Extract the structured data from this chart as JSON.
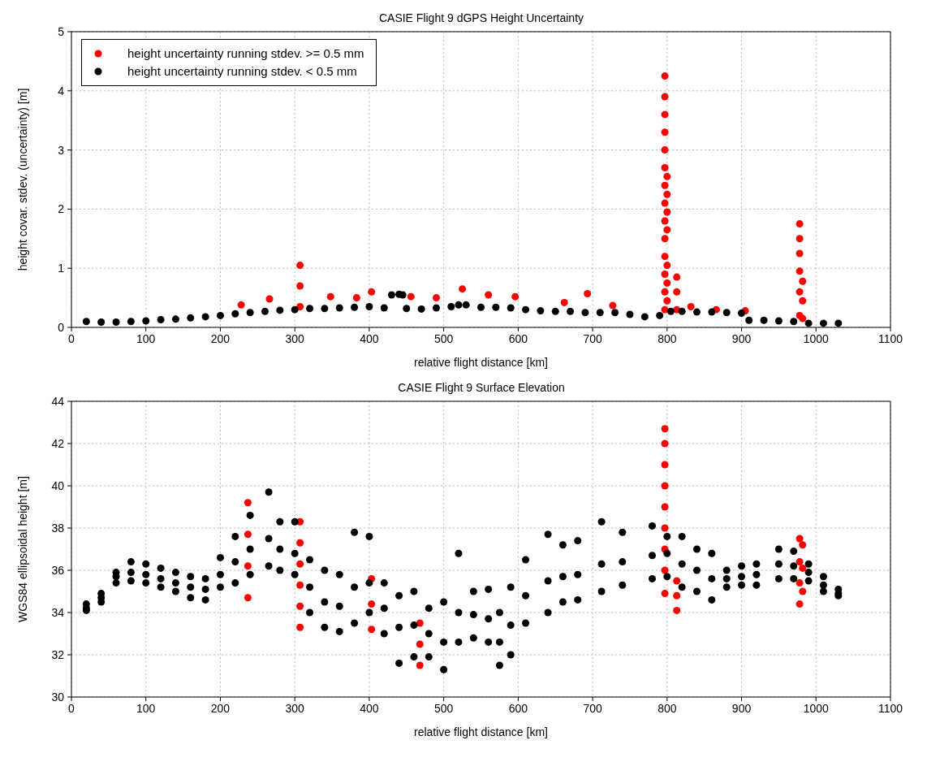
{
  "chart_data": [
    {
      "type": "scatter",
      "title": "CASIE Flight 9 dGPS Height Uncertainty",
      "xlabel": "relative flight distance [km]",
      "ylabel": "height covar. stdev. (uncertainty) [m]",
      "xlim": [
        0,
        1100
      ],
      "xticks": [
        0,
        100,
        200,
        300,
        400,
        500,
        600,
        700,
        800,
        900,
        1000,
        1100
      ],
      "ylim": [
        0,
        5
      ],
      "yticks": [
        0,
        1,
        2,
        3,
        4,
        5
      ],
      "grid": true,
      "legend": "top left",
      "marker": "circle",
      "series": [
        {
          "name": "height uncertainty running stdev. >= 0.5 mm",
          "color": "#ff0000",
          "x": [
            307,
            307,
            307,
            797,
            797,
            797,
            797,
            797,
            797,
            797,
            797,
            797,
            797,
            797,
            797,
            797,
            797,
            800,
            800,
            800,
            800,
            800,
            800,
            800,
            813,
            813,
            813,
            978,
            978,
            978,
            978,
            978,
            978,
            982,
            982,
            982,
            266,
            348,
            383,
            403,
            456,
            490,
            525,
            560,
            596,
            662,
            693,
            727,
            832,
            228,
            866,
            905
          ],
          "values": [
            0.35,
            0.7,
            1.05,
            0.3,
            0.6,
            0.9,
            1.2,
            1.5,
            1.8,
            2.1,
            2.4,
            2.7,
            3,
            3.3,
            3.6,
            3.9,
            4.25,
            0.45,
            0.75,
            1.05,
            1.65,
            1.95,
            2.25,
            2.55,
            0.3,
            0.6,
            0.85,
            0.2,
            0.6,
            0.95,
            1.25,
            1.5,
            1.75,
            0.15,
            0.45,
            0.78,
            0.48,
            0.52,
            0.5,
            0.6,
            0.52,
            0.5,
            0.65,
            0.55,
            0.52,
            0.42,
            0.57,
            0.37,
            0.35,
            0.38,
            0.3,
            0.28
          ]
        },
        {
          "name": "height uncertainty running stdev. < 0.5 mm",
          "color": "#000000",
          "x": [
            20,
            40,
            60,
            80,
            100,
            120,
            140,
            160,
            180,
            200,
            220,
            240,
            260,
            280,
            300,
            320,
            340,
            360,
            380,
            400,
            420,
            430,
            440,
            445,
            450,
            470,
            490,
            510,
            520,
            530,
            550,
            570,
            590,
            610,
            630,
            650,
            670,
            690,
            710,
            730,
            750,
            770,
            790,
            805,
            820,
            840,
            860,
            880,
            900,
            910,
            930,
            950,
            970,
            990,
            1010,
            1030
          ],
          "values": [
            0.1,
            0.09,
            0.09,
            0.1,
            0.11,
            0.13,
            0.14,
            0.16,
            0.18,
            0.2,
            0.23,
            0.25,
            0.27,
            0.29,
            0.3,
            0.32,
            0.32,
            0.33,
            0.34,
            0.35,
            0.33,
            0.55,
            0.56,
            0.55,
            0.32,
            0.31,
            0.33,
            0.35,
            0.38,
            0.38,
            0.34,
            0.34,
            0.33,
            0.3,
            0.28,
            0.27,
            0.27,
            0.25,
            0.25,
            0.25,
            0.22,
            0.18,
            0.2,
            0.27,
            0.27,
            0.26,
            0.26,
            0.25,
            0.24,
            0.12,
            0.12,
            0.11,
            0.1,
            0.07,
            0.07,
            0.07
          ]
        }
      ]
    },
    {
      "type": "scatter",
      "title": "CASIE Flight 9 Surface Elevation",
      "xlabel": "relative flight distance [km]",
      "ylabel": "WGS84 ellipsoidal height [m]",
      "xlim": [
        0,
        1100
      ],
      "xticks": [
        0,
        100,
        200,
        300,
        400,
        500,
        600,
        700,
        800,
        900,
        1000,
        1100
      ],
      "ylim": [
        30,
        44
      ],
      "yticks": [
        30,
        32,
        34,
        36,
        38,
        40,
        42,
        44
      ],
      "grid": true,
      "marker": "circle",
      "series": [
        {
          "color": "#ff0000",
          "x": [
            797,
            797,
            797,
            797,
            797,
            797,
            797,
            797,
            797,
            813,
            813,
            813,
            307,
            307,
            307,
            307,
            307,
            307,
            237,
            237,
            237,
            237,
            468,
            468,
            468,
            403,
            403,
            403,
            978,
            978,
            978,
            978,
            982,
            982,
            982
          ],
          "values": [
            34.9,
            36,
            37,
            38,
            39,
            40,
            41,
            42,
            42.7,
            34.1,
            34.8,
            35.5,
            33.3,
            34.3,
            35.3,
            36.3,
            37.3,
            38.3,
            34.7,
            36.2,
            37.7,
            39.2,
            31.5,
            32.5,
            33.5,
            33.2,
            34.4,
            35.6,
            34.4,
            35.4,
            36.4,
            37.5,
            35,
            36.1,
            37.2
          ]
        },
        {
          "color": "#000000",
          "x": [
            20,
            40,
            60,
            80,
            100,
            120,
            140,
            160,
            180,
            200,
            220,
            240,
            265,
            280,
            300,
            320,
            340,
            360,
            380,
            400,
            420,
            440,
            460,
            480,
            500,
            520,
            540,
            560,
            575,
            590,
            610,
            640,
            660,
            680,
            712,
            740,
            780,
            800,
            820,
            840,
            860,
            880,
            900,
            920,
            950,
            970,
            990,
            1010,
            1030,
            20,
            40,
            60,
            80,
            100,
            120,
            140,
            160,
            180,
            200,
            220,
            240,
            265,
            280,
            300,
            320,
            340,
            360,
            380,
            400,
            420,
            440,
            460,
            480,
            500,
            520,
            540,
            560,
            575,
            590,
            610,
            640,
            660,
            680,
            712,
            740,
            780,
            800,
            820,
            840,
            860,
            880,
            900,
            920,
            950,
            970,
            990,
            1010,
            1030,
            20,
            40,
            60,
            80,
            100,
            120,
            140,
            160,
            180,
            200,
            220,
            240,
            265,
            280,
            300,
            320,
            340,
            360,
            380,
            400,
            420,
            440,
            460,
            480,
            500,
            520,
            540,
            560,
            575,
            590,
            610,
            640,
            660,
            680,
            712,
            740,
            780,
            800,
            820,
            840,
            860,
            880,
            900,
            920,
            950,
            970,
            990,
            1010,
            1030
          ],
          "values": [
            34.4,
            34.9,
            35.9,
            36.4,
            36.3,
            36.1,
            35.9,
            35.7,
            35.6,
            36.6,
            37.6,
            38.6,
            39.7,
            38.3,
            38.3,
            36.5,
            36,
            35.8,
            37.8,
            37.6,
            35.4,
            34.8,
            35,
            34.2,
            34.5,
            36.8,
            35,
            35.1,
            34,
            35.2,
            36.5,
            37.7,
            37.2,
            37.4,
            38.3,
            37.8,
            38.1,
            37.6,
            37.6,
            37,
            36.8,
            36,
            36.2,
            36.3,
            37,
            36.9,
            36.3,
            35.7,
            35.1,
            34.1,
            34.5,
            35.4,
            35.5,
            35.4,
            35.2,
            35,
            34.7,
            34.6,
            35.2,
            35.4,
            35.8,
            36.2,
            36,
            35.8,
            34,
            33.3,
            33.1,
            33.5,
            34,
            33,
            31.6,
            31.9,
            31.9,
            31.3,
            32.6,
            32.8,
            32.6,
            31.5,
            32,
            33.5,
            34,
            34.5,
            34.6,
            35,
            35.3,
            35.6,
            35.7,
            35.2,
            35,
            34.6,
            35.2,
            35.3,
            35.3,
            35.6,
            35.6,
            35.5,
            35,
            34.8,
            34.2,
            34.7,
            35.7,
            35.9,
            35.8,
            35.6,
            35.4,
            35.2,
            35.1,
            35.8,
            36.4,
            37,
            37.5,
            37,
            36.8,
            35.2,
            34.5,
            34.3,
            35.2,
            35.4,
            34.2,
            33.3,
            33.4,
            33,
            32.6,
            34,
            33.9,
            33.7,
            32.6,
            33.4,
            34.8,
            35.5,
            35.7,
            35.8,
            36.3,
            36.4,
            36.7,
            36.8,
            36.3,
            36,
            35.6,
            35.6,
            35.7,
            35.8,
            36.3,
            36.2,
            35.9,
            35.3,
            34.9
          ]
        }
      ]
    }
  ]
}
